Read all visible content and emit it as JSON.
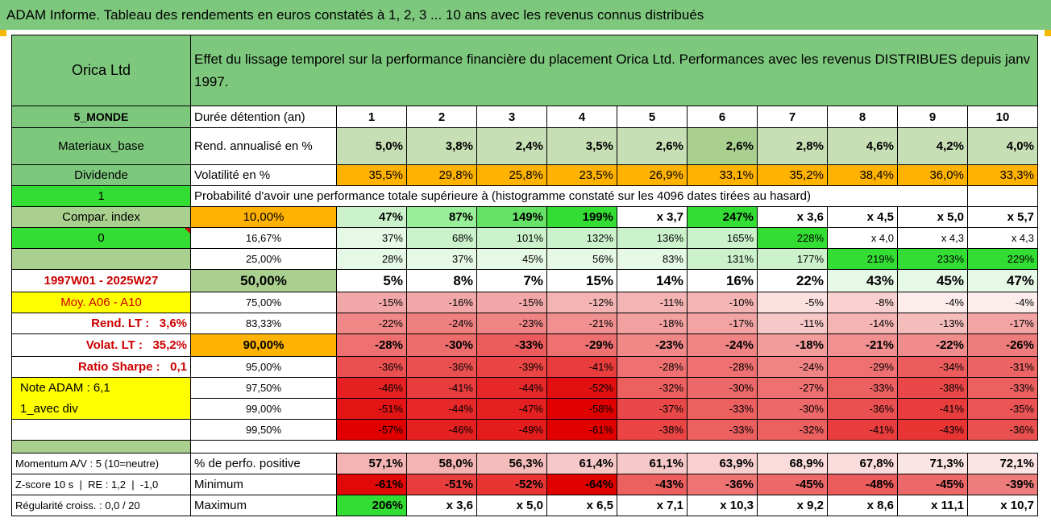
{
  "title": "ADAM Informe. Tableau des rendements en euros constatés à 1, 2, 3 ... 10 ans avec les revenus connus distribués",
  "header": {
    "company": "Orica Ltd",
    "description": "Effet du lissage temporel sur la performance financière du placement Orica Ltd. Performances avec les revenus DISTRIBUES depuis janv 1997."
  },
  "left_col": {
    "region": "5_MONDE",
    "sector": "Materiaux_base",
    "dividend": "Dividende",
    "flag1": "1",
    "compar": "Compar. index",
    "flag0": "0",
    "period": "1997W01 - 2025W27",
    "moy": "Moy. A06 - A10",
    "rend_lt": "Rend. LT :   3,6%",
    "volat_lt": "Volat. LT :   35,2%",
    "sharpe": "Ratio Sharpe :   0,1",
    "note": "Note ADAM : 6,1",
    "avec_div": "1_avec div",
    "momentum": "Momentum A/V : 5 (10=neutre)",
    "zscore": "Z-score 10 s  |  RE : 1,2  |  -1,0",
    "regularite": "Régularité croiss. : 0,0 / 20"
  },
  "row_labels": {
    "duree": "Durée détention (an)",
    "rend": "Rend. annualisé en %",
    "volat": "Volatilité en %",
    "proba": "Probabilité d'avoir une performance totale supérieure à (histogramme constaté sur les 4096 dates tirées au hasard)",
    "pct_pos": "% de perfo. positive",
    "minimum": "Minimum",
    "maximum": "Maximum"
  },
  "years": [
    "1",
    "2",
    "3",
    "4",
    "5",
    "6",
    "7",
    "8",
    "9",
    "10"
  ],
  "rend": [
    "5,0%",
    "3,8%",
    "2,4%",
    "3,5%",
    "2,6%",
    "2,6%",
    "2,8%",
    "4,6%",
    "4,2%",
    "4,0%"
  ],
  "volat": [
    "35,5%",
    "29,8%",
    "25,8%",
    "23,5%",
    "26,9%",
    "33,1%",
    "35,2%",
    "38,4%",
    "36,0%",
    "33,3%"
  ],
  "percentile_rows": [
    {
      "p": "10,00%",
      "v": [
        "47%",
        "87%",
        "149%",
        "199%",
        "x 3,7",
        "247%",
        "x 3,6",
        "x 4,5",
        "x 5,0",
        "x 5,7"
      ]
    },
    {
      "p": "16,67%",
      "v": [
        "37%",
        "68%",
        "101%",
        "132%",
        "136%",
        "165%",
        "228%",
        "x 4,0",
        "x 4,3",
        "x 4,3"
      ]
    },
    {
      "p": "25,00%",
      "v": [
        "28%",
        "37%",
        "45%",
        "56%",
        "83%",
        "131%",
        "177%",
        "219%",
        "233%",
        "229%"
      ]
    },
    {
      "p": "50,00%",
      "v": [
        "5%",
        "8%",
        "7%",
        "15%",
        "14%",
        "16%",
        "22%",
        "43%",
        "45%",
        "47%"
      ]
    },
    {
      "p": "75,00%",
      "v": [
        "-15%",
        "-16%",
        "-15%",
        "-12%",
        "-11%",
        "-10%",
        "-5%",
        "-8%",
        "-4%",
        "-4%"
      ]
    },
    {
      "p": "83,33%",
      "v": [
        "-22%",
        "-24%",
        "-23%",
        "-21%",
        "-18%",
        "-17%",
        "-11%",
        "-14%",
        "-13%",
        "-17%"
      ]
    },
    {
      "p": "90,00%",
      "v": [
        "-28%",
        "-30%",
        "-33%",
        "-29%",
        "-23%",
        "-24%",
        "-18%",
        "-21%",
        "-22%",
        "-26%"
      ]
    },
    {
      "p": "95,00%",
      "v": [
        "-36%",
        "-36%",
        "-39%",
        "-41%",
        "-28%",
        "-28%",
        "-24%",
        "-29%",
        "-34%",
        "-31%"
      ]
    },
    {
      "p": "97,50%",
      "v": [
        "-46%",
        "-41%",
        "-44%",
        "-52%",
        "-32%",
        "-30%",
        "-27%",
        "-33%",
        "-38%",
        "-33%"
      ]
    },
    {
      "p": "99,00%",
      "v": [
        "-51%",
        "-44%",
        "-47%",
        "-58%",
        "-37%",
        "-33%",
        "-30%",
        "-36%",
        "-41%",
        "-35%"
      ]
    },
    {
      "p": "99,50%",
      "v": [
        "-57%",
        "-46%",
        "-49%",
        "-61%",
        "-38%",
        "-33%",
        "-32%",
        "-41%",
        "-43%",
        "-36%"
      ]
    }
  ],
  "pct_pos": [
    "57,1%",
    "58,0%",
    "56,3%",
    "61,4%",
    "61,1%",
    "63,9%",
    "68,9%",
    "67,8%",
    "71,3%",
    "72,1%"
  ],
  "minimum": [
    "-61%",
    "-51%",
    "-52%",
    "-64%",
    "-43%",
    "-36%",
    "-45%",
    "-48%",
    "-45%",
    "-39%"
  ],
  "maximum": [
    "206%",
    "x 3,6",
    "x 5,0",
    "x 6,5",
    "x 7,1",
    "x 10,3",
    "x 9,2",
    "x 8,6",
    "x 11,1",
    "x 10,7"
  ],
  "colors": {
    "rend": [
      "#c6dfb4",
      "#c6dfb4",
      "#c6dfb4",
      "#c6dfb4",
      "#c6dfb4",
      "#a9d08e",
      "#c6dfb4",
      "#c6dfb4",
      "#c6dfb4",
      "#c6dfb4"
    ],
    "percentile_rows": [
      [
        "#ccf2cc",
        "#99ee99",
        "#66e366",
        "#33dd33",
        "#ffffff",
        "#33dd33",
        "#ffffff",
        "#ffffff",
        "#ffffff",
        "#ffffff"
      ],
      [
        "#e6f8e6",
        "#ccf2cc",
        "#ccf2cc",
        "#ccf2cc",
        "#ccf2cc",
        "#ccf2cc",
        "#33dd33",
        "#ffffff",
        "#ffffff",
        "#ffffff"
      ],
      [
        "#e6f8e6",
        "#e6f8e6",
        "#e6f8e6",
        "#e6f8e6",
        "#e6f8e6",
        "#ccf2cc",
        "#ccf2cc",
        "#33dd33",
        "#33dd33",
        "#33dd33"
      ],
      [
        "#ffffff",
        "#ffffff",
        "#ffffff",
        "#ffffff",
        "#ffffff",
        "#ffffff",
        "#ffffff",
        "#e6f8e6",
        "#e6f8e6",
        "#e6f8e6"
      ],
      [
        "#f2a8a8",
        "#f2a8a8",
        "#f2a8a8",
        "#f4b4b4",
        "#f4b4b4",
        "#f4b4b4",
        "#fbe0e0",
        "#f8d0d0",
        "#fdecec",
        "#fdecec"
      ],
      [
        "#f08888",
        "#ee8080",
        "#ef8484",
        "#f09090",
        "#f2a0a0",
        "#f2a4a4",
        "#f7c8c8",
        "#f4b4b4",
        "#f5bcbc",
        "#f2a4a4"
      ],
      [
        "#ee7070",
        "#ed6c6c",
        "#ec5c5c",
        "#ee7070",
        "#f08888",
        "#f08484",
        "#f29c9c",
        "#f09090",
        "#f08c8c",
        "#ef7c7c"
      ],
      [
        "#eb5050",
        "#eb5050",
        "#ea4444",
        "#e93c3c",
        "#ee7070",
        "#ee7070",
        "#f08484",
        "#ee7070",
        "#ec5c5c",
        "#ec6464"
      ],
      [
        "#e52020",
        "#e93c3c",
        "#e62828",
        "#e21010",
        "#ec6060",
        "#ed6868",
        "#ee7070",
        "#ec6060",
        "#ea4848",
        "#ec6060"
      ],
      [
        "#e21414",
        "#e62828",
        "#e52020",
        "#e00000",
        "#ea4848",
        "#ec6060",
        "#ed6868",
        "#eb5050",
        "#e93c3c",
        "#eb5454"
      ],
      [
        "#e00000",
        "#e52020",
        "#e41c1c",
        "#e00000",
        "#ea4444",
        "#ec6060",
        "#ec6060",
        "#e93c3c",
        "#e93434",
        "#eb5050"
      ]
    ],
    "pct_pos": [
      "#f4b4b4",
      "#f4b4b4",
      "#f5bcbc",
      "#f7c8c8",
      "#f7c8c8",
      "#f8d0d0",
      "#fadcdc",
      "#fadcdc",
      "#fbe4e4",
      "#fbe4e4"
    ],
    "minimum": [
      "#e10808",
      "#e93c3c",
      "#e93434",
      "#e00000",
      "#ec6060",
      "#ee7474",
      "#ed6868",
      "#ec5c5c",
      "#ed6868",
      "#ef7c7c"
    ],
    "maximum": [
      "#33dd33",
      "#ffffff",
      "#ffffff",
      "#ffffff",
      "#ffffff",
      "#ffffff",
      "#ffffff",
      "#ffffff",
      "#ffffff",
      "#ffffff"
    ]
  }
}
